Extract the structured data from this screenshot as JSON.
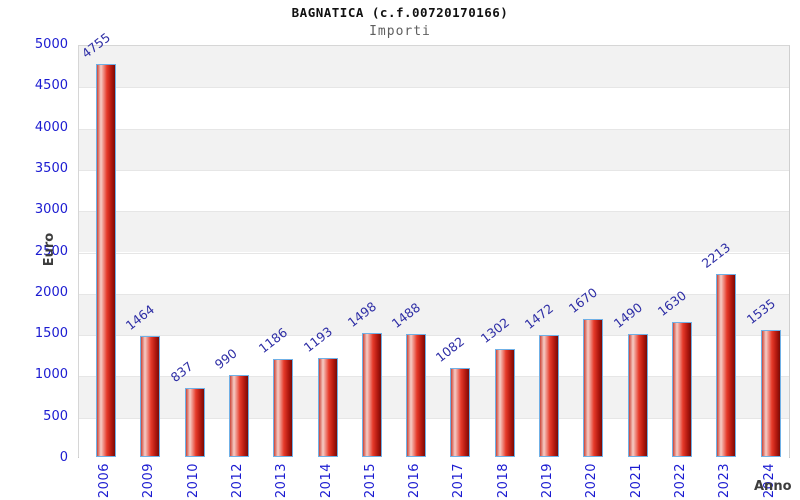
{
  "chart_data": {
    "type": "bar",
    "title": "BAGNATICA (c.f.00720170166)",
    "subtitle": "Importi",
    "xlabel": "Anno",
    "ylabel": "Euro",
    "categories": [
      "2006",
      "2009",
      "2010",
      "2012",
      "2013",
      "2014",
      "2015",
      "2016",
      "2017",
      "2018",
      "2019",
      "2020",
      "2021",
      "2022",
      "2023",
      "2024"
    ],
    "values": [
      4755,
      1464,
      837,
      990,
      1186,
      1193,
      1498,
      1488,
      1082,
      1302,
      1472,
      1670,
      1490,
      1630,
      2213,
      1535
    ],
    "ylim": [
      0,
      5000
    ],
    "ytick_step": 500,
    "yticks": [
      0,
      500,
      1000,
      1500,
      2000,
      2500,
      3000,
      3500,
      4000,
      4500,
      5000
    ],
    "legend": "none",
    "grid": "alternating horizontal bands every 500 units, light gridline at each 500",
    "value_labels": "shown above each bar, rotated diagonally",
    "colors": {
      "bar_fill_gradient": [
        "#cc4538",
        "#f6cdc6",
        "#e63a2a",
        "#b2180f",
        "#7a0b06"
      ],
      "bar_border": "#6fb0e6",
      "axis_tick_text": "#1b1bd1",
      "value_label_text": "#2d2da5",
      "band_gray": "#f2f2f2",
      "band_white": "#ffffff",
      "plot_border": "#d6d6d6",
      "title_text": "#111111",
      "subtitle_text": "#5f5f5f",
      "axis_title_text": "#3d3d3d"
    }
  }
}
